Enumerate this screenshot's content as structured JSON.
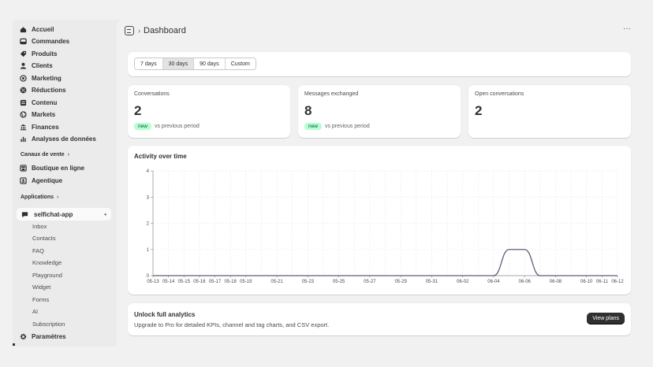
{
  "sidebar": {
    "items": [
      {
        "label": "Accueil",
        "icon": "home-icon"
      },
      {
        "label": "Commandes",
        "icon": "inbox-icon"
      },
      {
        "label": "Produits",
        "icon": "tag-icon"
      },
      {
        "label": "Clients",
        "icon": "person-icon"
      },
      {
        "label": "Marketing",
        "icon": "target-icon"
      },
      {
        "label": "Réductions",
        "icon": "discount-icon"
      },
      {
        "label": "Contenu",
        "icon": "content-icon"
      },
      {
        "label": "Markets",
        "icon": "globe-icon"
      },
      {
        "label": "Finances",
        "icon": "bank-icon"
      },
      {
        "label": "Analyses de données",
        "icon": "chart-bar-icon"
      }
    ],
    "sales_channels": {
      "label": "Canaux de vente",
      "items": [
        {
          "label": "Boutique en ligne",
          "icon": "store-icon"
        },
        {
          "label": "Agentique",
          "icon": "agent-icon"
        }
      ]
    },
    "applications": {
      "label": "Applications",
      "app": {
        "label": "selfichat-app",
        "icon": "chat-icon",
        "more": "•"
      },
      "subitems": [
        "Inbox",
        "Contacts",
        "FAQ",
        "Knowledge",
        "Playground",
        "Widget",
        "Forms",
        "AI",
        "Subscription"
      ]
    },
    "settings": {
      "label": "Paramètres",
      "icon": "gear-icon"
    }
  },
  "header": {
    "title": "Dashboard",
    "separator": "›",
    "more": "···"
  },
  "range": {
    "options": [
      "7 days",
      "30 days",
      "90 days",
      "Custom"
    ],
    "selected": "30 days"
  },
  "stats": [
    {
      "label": "Conversations",
      "value": "2",
      "badge": "new",
      "note": "vs previous period"
    },
    {
      "label": "Messages exchanged",
      "value": "8",
      "badge": "new",
      "note": "vs previous period"
    },
    {
      "label": "Open conversations",
      "value": "2",
      "badge": "",
      "note": ""
    }
  ],
  "chart_data": {
    "type": "line",
    "title": "Activity over time",
    "x": [
      "05-13",
      "05-14",
      "05-15",
      "05-16",
      "05-17",
      "05-18",
      "05-19",
      "05-20",
      "05-21",
      "05-22",
      "05-23",
      "05-24",
      "05-25",
      "05-26",
      "05-27",
      "05-28",
      "05-29",
      "05-30",
      "05-31",
      "06-01",
      "06-02",
      "06-03",
      "06-04",
      "06-05",
      "06-06",
      "06-07",
      "06-08",
      "06-09",
      "06-10",
      "06-11",
      "06-12"
    ],
    "x_tick_labels": [
      "05-13",
      "05-14",
      "05-15",
      "05-16",
      "05-17",
      "05-18",
      "05-19",
      "05-21",
      "05-23",
      "05-25",
      "05-27",
      "05-29",
      "05-31",
      "06-02",
      "06-04",
      "06-06",
      "06-08",
      "06-10",
      "06-11",
      "06-12"
    ],
    "series": [
      {
        "values": [
          0,
          0,
          0,
          0,
          0,
          0,
          0,
          0,
          0,
          0,
          0,
          0,
          0,
          0,
          0,
          0,
          0,
          0,
          0,
          0,
          0,
          0,
          0,
          1,
          1,
          0,
          0,
          0,
          0,
          0,
          0
        ]
      }
    ],
    "ylim": [
      0,
      4
    ],
    "y_ticks": [
      "0",
      "1",
      "2",
      "3",
      "4"
    ],
    "grid": true,
    "line_color": "#5b5f7a"
  },
  "upsell": {
    "title": "Unlock full analytics",
    "description": "Upgrade to Pro for detailed KPIs, channel and tag charts, and CSV export.",
    "button": "View plans"
  }
}
